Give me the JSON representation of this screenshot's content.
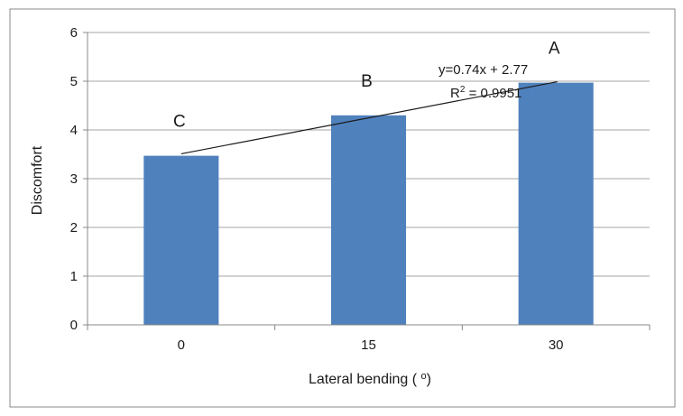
{
  "chart_data": {
    "type": "bar",
    "categories": [
      "0",
      "15",
      "30"
    ],
    "values": [
      3.47,
      4.3,
      4.97
    ],
    "bar_letters": [
      "C",
      "B",
      "A"
    ],
    "title": "",
    "xlabel": "Lateral bending (o)",
    "ylabel": "Discomfort",
    "ylim": [
      0,
      6
    ],
    "yticks": [
      "0",
      "1",
      "2",
      "3",
      "4",
      "5",
      "6"
    ],
    "grid": true,
    "legend": "none",
    "bar_color": "#4f81bd",
    "trendline": {
      "type": "linear",
      "slope": 0.74,
      "intercept": 2.77,
      "equation": "y=0.74x + 2.77",
      "r2_label": "R",
      "r2_sup": "2",
      "r2_value": " = 0.9951",
      "color": "#1a1a1a"
    }
  }
}
